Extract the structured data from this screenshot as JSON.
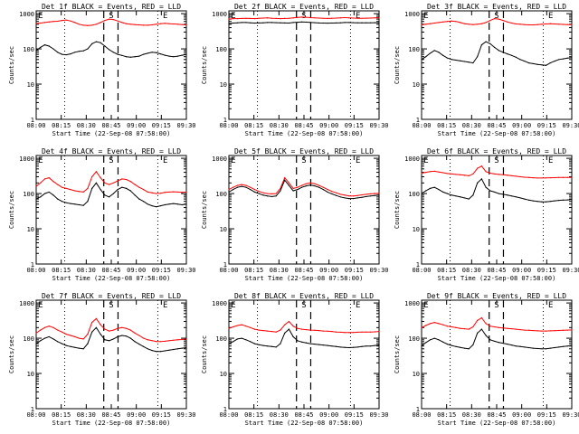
{
  "chart_data": [
    {
      "type": "line",
      "title": "Det 1f BLACK = Events, RED = LLD",
      "xlabel": "Start Time (22-Sep-08 07:58:00)",
      "ylabel": "Counts/sec",
      "x_ticks": [
        "08:00",
        "08:15",
        "08:30",
        "08:45",
        "09:00",
        "09:15",
        "09:30"
      ],
      "y_ticks": [
        "1",
        "10",
        "100",
        "1000"
      ],
      "ylim": [
        1,
        1200
      ],
      "markers": [
        "E",
        "S",
        "E"
      ],
      "series": [
        {
          "name": "RED = LLD",
          "color": "#ff0000",
          "values": [
            520,
            540,
            560,
            580,
            600,
            610,
            640,
            660,
            620,
            560,
            500,
            470,
            460,
            470,
            500,
            560,
            640,
            700,
            680,
            620,
            560,
            520,
            500,
            490,
            480,
            470,
            470,
            480,
            500,
            520,
            530,
            520,
            510,
            500,
            490,
            480
          ]
        },
        {
          "name": "BLACK = Events",
          "color": "#000000",
          "values": [
            90,
            110,
            130,
            120,
            100,
            80,
            70,
            68,
            72,
            80,
            85,
            88,
            100,
            140,
            160,
            150,
            120,
            95,
            80,
            70,
            65,
            60,
            58,
            60,
            62,
            70,
            75,
            80,
            78,
            72,
            66,
            62,
            60,
            62,
            66,
            70
          ]
        }
      ]
    },
    {
      "type": "line",
      "title": "Det 2f BLACK = Events, RED = LLD",
      "xlabel": "Start Time (22-Sep-08 07:58:00)",
      "ylabel": "Counts/sec",
      "x_ticks": [
        "08:00",
        "08:15",
        "08:30",
        "08:45",
        "09:00",
        "09:15",
        "09:30"
      ],
      "y_ticks": [
        "1",
        "10",
        "100",
        "1000"
      ],
      "ylim": [
        1,
        1200
      ],
      "markers": [
        "E",
        "S",
        "E"
      ],
      "series": [
        {
          "name": "RED = LLD",
          "color": "#ff0000",
          "values": [
            700,
            720,
            720,
            730,
            740,
            730,
            720,
            740,
            750,
            760,
            740,
            730,
            720,
            730,
            740,
            760,
            780,
            800,
            790,
            770,
            760,
            750,
            740,
            730,
            740,
            750,
            760,
            770,
            760,
            750,
            740,
            740,
            745,
            750,
            755,
            760
          ]
        },
        {
          "name": "BLACK = Events",
          "color": "#000000",
          "values": [
            520,
            540,
            550,
            560,
            560,
            550,
            540,
            545,
            550,
            560,
            560,
            555,
            550,
            545,
            540,
            560,
            570,
            580,
            575,
            565,
            555,
            545,
            540,
            538,
            540,
            545,
            550,
            560,
            560,
            555,
            550,
            548,
            548,
            550,
            552,
            555
          ]
        }
      ]
    },
    {
      "type": "line",
      "title": "Det 3f BLACK = Events, RED = LLD",
      "xlabel": "Start Time (22-Sep-08 07:58:00)",
      "ylabel": "Counts/sec",
      "x_ticks": [
        "08:00",
        "08:15",
        "08:30",
        "08:45",
        "09:00",
        "09:15",
        "09:30"
      ],
      "y_ticks": [
        "1",
        "10",
        "100",
        "1000"
      ],
      "ylim": [
        1,
        1200
      ],
      "markers": [
        "E",
        "S",
        "E"
      ],
      "series": [
        {
          "name": "RED = LLD",
          "color": "#ff0000",
          "values": [
            480,
            500,
            520,
            540,
            560,
            580,
            600,
            620,
            600,
            560,
            520,
            500,
            490,
            500,
            520,
            560,
            640,
            720,
            700,
            640,
            580,
            540,
            510,
            500,
            490,
            480,
            480,
            490,
            500,
            510,
            520,
            510,
            500,
            495,
            490,
            485
          ]
        },
        {
          "name": "BLACK = Events",
          "color": "#000000",
          "values": [
            50,
            60,
            75,
            90,
            80,
            65,
            55,
            50,
            48,
            46,
            44,
            42,
            40,
            60,
            130,
            160,
            140,
            110,
            90,
            80,
            72,
            65,
            58,
            50,
            45,
            40,
            38,
            36,
            35,
            34,
            40,
            45,
            50,
            52,
            55,
            56
          ]
        }
      ]
    },
    {
      "type": "line",
      "title": "Det 4f BLACK = Events, RED = LLD",
      "xlabel": "Start Time (22-Sep-08 07:58:00)",
      "ylabel": "Counts/sec",
      "x_ticks": [
        "08:00",
        "08:15",
        "08:30",
        "08:45",
        "09:00",
        "09:15",
        "09:30"
      ],
      "y_ticks": [
        "1",
        "10",
        "100",
        "1000"
      ],
      "ylim": [
        1,
        1200
      ],
      "markers": [
        "E",
        "S",
        "E"
      ],
      "series": [
        {
          "name": "RED = LLD",
          "color": "#ff0000",
          "values": [
            160,
            200,
            260,
            280,
            220,
            180,
            150,
            140,
            130,
            120,
            115,
            110,
            140,
            300,
            420,
            280,
            200,
            180,
            200,
            230,
            260,
            250,
            220,
            180,
            150,
            130,
            110,
            105,
            100,
            102,
            108,
            110,
            112,
            110,
            108,
            110
          ]
        },
        {
          "name": "BLACK = Events",
          "color": "#000000",
          "values": [
            70,
            80,
            100,
            110,
            90,
            70,
            60,
            55,
            52,
            50,
            48,
            46,
            60,
            140,
            200,
            130,
            90,
            80,
            100,
            130,
            150,
            140,
            120,
            90,
            70,
            60,
            50,
            45,
            42,
            45,
            48,
            50,
            52,
            50,
            48,
            50
          ]
        }
      ]
    },
    {
      "type": "line",
      "title": "Det 5f BLACK = Events, RED = LLD",
      "xlabel": "Start Time (22-Sep-08 07:58:00)",
      "ylabel": "Counts/sec",
      "x_ticks": [
        "08:00",
        "08:15",
        "08:30",
        "08:45",
        "09:00",
        "09:15",
        "09:30"
      ],
      "y_ticks": [
        "1",
        "10",
        "100",
        "1000"
      ],
      "ylim": [
        1,
        1200
      ],
      "markers": [
        "E",
        "S",
        "E"
      ],
      "series": [
        {
          "name": "RED = LLD",
          "color": "#ff0000",
          "values": [
            130,
            150,
            170,
            180,
            170,
            150,
            130,
            115,
            105,
            100,
            98,
            100,
            140,
            280,
            200,
            140,
            150,
            170,
            190,
            200,
            190,
            170,
            150,
            130,
            115,
            105,
            95,
            90,
            85,
            85,
            88,
            92,
            95,
            98,
            100,
            102
          ]
        },
        {
          "name": "BLACK = Events",
          "color": "#000000",
          "values": [
            110,
            130,
            150,
            160,
            150,
            130,
            110,
            100,
            90,
            85,
            82,
            85,
            120,
            240,
            170,
            120,
            130,
            150,
            165,
            175,
            165,
            150,
            130,
            110,
            98,
            88,
            80,
            75,
            72,
            72,
            75,
            78,
            82,
            85,
            88,
            90
          ]
        }
      ]
    },
    {
      "type": "line",
      "title": "Det 6f BLACK = Events, RED = LLD",
      "xlabel": "Start Time (22-Sep-08 07:58:00)",
      "ylabel": "Counts/sec",
      "x_ticks": [
        "08:00",
        "08:15",
        "08:30",
        "08:45",
        "09:00",
        "09:15",
        "09:30"
      ],
      "y_ticks": [
        "1",
        "10",
        "100",
        "1000"
      ],
      "ylim": [
        1,
        1200
      ],
      "markers": [
        "E",
        "S",
        "E"
      ],
      "series": [
        {
          "name": "RED = LLD",
          "color": "#ff0000",
          "values": [
            380,
            400,
            420,
            430,
            410,
            390,
            370,
            360,
            350,
            340,
            330,
            320,
            360,
            520,
            600,
            420,
            380,
            360,
            350,
            340,
            330,
            320,
            310,
            300,
            290,
            285,
            280,
            275,
            275,
            278,
            280,
            282,
            285,
            285,
            286,
            288
          ]
        },
        {
          "name": "BLACK = Events",
          "color": "#000000",
          "values": [
            100,
            120,
            140,
            150,
            130,
            110,
            100,
            90,
            85,
            80,
            75,
            70,
            90,
            200,
            260,
            150,
            120,
            110,
            100,
            95,
            90,
            85,
            80,
            75,
            70,
            65,
            62,
            60,
            58,
            58,
            60,
            62,
            64,
            65,
            66,
            68
          ]
        }
      ]
    },
    {
      "type": "line",
      "title": "Det 7f BLACK = Events, RED = LLD",
      "xlabel": "Start Time (22-Sep-08 07:58:00)",
      "ylabel": "Counts/sec",
      "x_ticks": [
        "08:00",
        "08:15",
        "08:30",
        "08:45",
        "09:00",
        "09:15",
        "09:30"
      ],
      "y_ticks": [
        "1",
        "10",
        "100",
        "1000"
      ],
      "ylim": [
        1,
        1200
      ],
      "markers": [
        "E",
        "S",
        "E"
      ],
      "series": [
        {
          "name": "RED = LLD",
          "color": "#ff0000",
          "values": [
            140,
            170,
            200,
            220,
            200,
            170,
            150,
            130,
            120,
            110,
            100,
            95,
            130,
            280,
            360,
            240,
            180,
            160,
            170,
            190,
            200,
            190,
            170,
            140,
            120,
            100,
            90,
            85,
            80,
            80,
            82,
            85,
            88,
            90,
            92,
            95
          ]
        },
        {
          "name": "BLACK = Events",
          "color": "#000000",
          "values": [
            70,
            85,
            100,
            110,
            95,
            80,
            70,
            62,
            58,
            55,
            52,
            50,
            70,
            150,
            200,
            130,
            90,
            85,
            95,
            110,
            120,
            115,
            100,
            80,
            68,
            58,
            50,
            45,
            42,
            42,
            44,
            46,
            48,
            50,
            52,
            54
          ]
        }
      ]
    },
    {
      "type": "line",
      "title": "Det 8f BLACK = Events, RED = LLD",
      "xlabel": "Start Time (22-Sep-08 07:58:00)",
      "ylabel": "Counts/sec",
      "x_ticks": [
        "08:00",
        "08:15",
        "08:30",
        "08:45",
        "09:00",
        "09:15",
        "09:30"
      ],
      "y_ticks": [
        "1",
        "10",
        "100",
        "1000"
      ],
      "ylim": [
        1,
        1200
      ],
      "markers": [
        "E",
        "S",
        "E"
      ],
      "series": [
        {
          "name": "RED = LLD",
          "color": "#ff0000",
          "values": [
            190,
            210,
            230,
            240,
            220,
            200,
            180,
            170,
            165,
            160,
            155,
            150,
            170,
            240,
            300,
            220,
            190,
            180,
            175,
            170,
            168,
            165,
            160,
            158,
            155,
            150,
            148,
            145,
            145,
            146,
            148,
            150,
            150,
            150,
            152,
            155
          ]
        },
        {
          "name": "BLACK = Events",
          "color": "#000000",
          "values": [
            70,
            80,
            95,
            100,
            90,
            80,
            70,
            65,
            62,
            60,
            58,
            56,
            70,
            140,
            180,
            110,
            85,
            78,
            74,
            70,
            68,
            66,
            64,
            62,
            60,
            58,
            56,
            55,
            54,
            55,
            56,
            58,
            60,
            60,
            62,
            64
          ]
        }
      ]
    },
    {
      "type": "line",
      "title": "Det 9f BLACK = Events, RED = LLD",
      "xlabel": "Start Time (22-Sep-08 07:58:00)",
      "ylabel": "Counts/sec",
      "x_ticks": [
        "08:00",
        "08:15",
        "08:30",
        "08:45",
        "09:00",
        "09:15",
        "09:30"
      ],
      "y_ticks": [
        "1",
        "10",
        "100",
        "1000"
      ],
      "ylim": [
        1,
        1200
      ],
      "markers": [
        "E",
        "S",
        "E"
      ],
      "series": [
        {
          "name": "RED = LLD",
          "color": "#ff0000",
          "values": [
            200,
            230,
            260,
            280,
            260,
            240,
            220,
            210,
            200,
            190,
            185,
            180,
            210,
            320,
            380,
            260,
            220,
            210,
            200,
            195,
            190,
            185,
            180,
            175,
            170,
            168,
            165,
            162,
            160,
            160,
            162,
            164,
            166,
            168,
            170,
            172
          ]
        },
        {
          "name": "BLACK = Events",
          "color": "#000000",
          "values": [
            60,
            75,
            90,
            100,
            90,
            78,
            68,
            62,
            58,
            55,
            52,
            50,
            65,
            140,
            180,
            120,
            90,
            82,
            76,
            72,
            68,
            64,
            60,
            58,
            56,
            54,
            52,
            51,
            50,
            50,
            52,
            54,
            56,
            58,
            60,
            62
          ]
        }
      ]
    }
  ]
}
